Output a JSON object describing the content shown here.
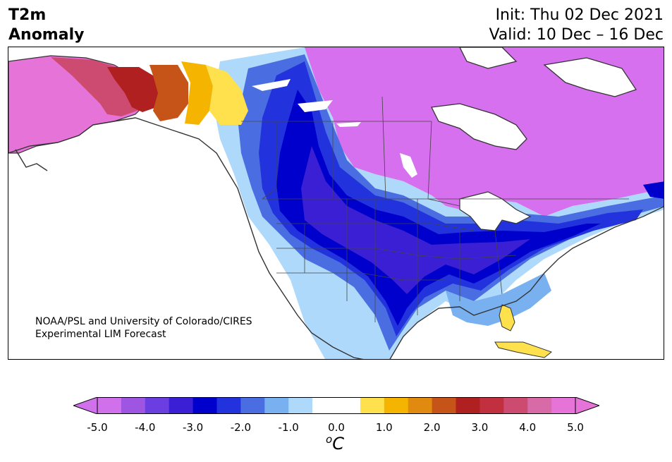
{
  "header": {
    "title_line1": "T2m",
    "title_line2": "Anomaly",
    "init": "Init: Thu 02 Dec 2021",
    "valid": "Valid: 10 Dec – 16 Dec"
  },
  "credit": {
    "line1": "NOAA/PSL and University of Colorado/CIRES",
    "line2": "Experimental LIM Forecast"
  },
  "colorbar": {
    "colors": [
      "#d070ea",
      "#9d55e2",
      "#6a3ee0",
      "#3a1fd4",
      "#0000cc",
      "#2233dd",
      "#4a6ee2",
      "#78b0f0",
      "#aed9fb",
      "#ffffff",
      "#ffffff",
      "#ffe14d",
      "#f4b400",
      "#e08a10",
      "#c65419",
      "#b02020",
      "#c23040",
      "#cd4b70",
      "#d96aa8",
      "#e673d8"
    ],
    "ticks": [
      "-5.0",
      "-4.0",
      "-3.0",
      "-2.0",
      "-1.0",
      "0.0",
      "1.0",
      "2.0",
      "3.0",
      "4.0",
      "5.0"
    ],
    "unit_base": "o",
    "unit_label": "C"
  },
  "map_colors": {
    "land": "#ffffff",
    "water": "#ffffff",
    "coast": "#333333"
  }
}
